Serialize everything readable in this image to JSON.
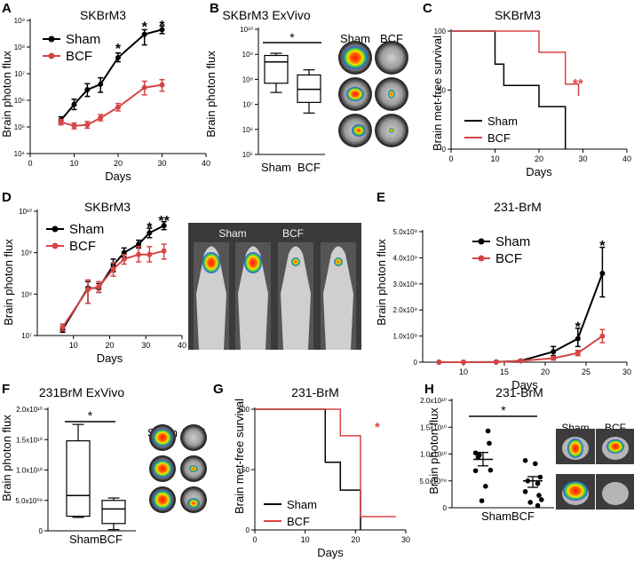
{
  "colors": {
    "sham": "#000000",
    "bcf": "#d64545"
  },
  "chart_data": [
    {
      "id": "A",
      "panel_label": "A",
      "type": "line",
      "title": "SKBrM3",
      "xlabel": "Days",
      "ylabel": "Brain photon flux",
      "xlim": [
        0,
        40
      ],
      "xticks": [
        0,
        10,
        20,
        30,
        40
      ],
      "yscale": "log",
      "ylim": [
        10000,
        1000000000
      ],
      "yticks": [
        {
          "v": 10000,
          "label": "10⁴"
        },
        {
          "v": 100000,
          "label": "10⁵"
        },
        {
          "v": 1000000,
          "label": "10⁶"
        },
        {
          "v": 10000000,
          "label": "10⁷"
        },
        {
          "v": 100000000,
          "label": "10⁸"
        },
        {
          "v": 1000000000,
          "label": "10⁹"
        }
      ],
      "legend": {
        "position": "top-left"
      },
      "series": [
        {
          "name": "Sham",
          "color": "#000000",
          "points": [
            [
              7,
              180000,
              140000,
              240000
            ],
            [
              10,
              700000,
              450000,
              1100000
            ],
            [
              13,
              2500000,
              1400000,
              4200000
            ],
            [
              16,
              4000000,
              2000000,
              7000000
            ],
            [
              20,
              40000000,
              28000000,
              60000000
            ],
            [
              26,
              300000000,
              120000000,
              450000000
            ],
            [
              30,
              450000000,
              320000000,
              620000000
            ]
          ]
        },
        {
          "name": "BCF",
          "color": "#d64545",
          "points": [
            [
              7,
              150000,
              120000,
              190000
            ],
            [
              10,
              110000,
              85000,
              140000
            ],
            [
              13,
              120000,
              90000,
              160000
            ],
            [
              16,
              220000,
              170000,
              290000
            ],
            [
              20,
              550000,
              400000,
              760000
            ],
            [
              26,
              3000000,
              1600000,
              5200000
            ],
            [
              30,
              3800000,
              2200000,
              6000000
            ]
          ]
        }
      ],
      "annotations": [
        {
          "x": 20,
          "y": 110000000,
          "text": "*"
        },
        {
          "x": 26,
          "y": 700000000,
          "text": "*"
        },
        {
          "x": 30,
          "y": 800000000,
          "text": "*"
        }
      ]
    },
    {
      "id": "B",
      "panel_label": "B",
      "type": "box",
      "title": "SKBrM3 ExVivo",
      "ylabel": "Brain photon flux",
      "yscale": "log",
      "ylim": [
        100000,
        10000000000
      ],
      "yticks": [
        {
          "v": 100000,
          "label": "10⁵"
        },
        {
          "v": 1000000,
          "label": "10⁶"
        },
        {
          "v": 10000000,
          "label": "10⁷"
        },
        {
          "v": 100000000,
          "label": "10⁸"
        },
        {
          "v": 1000000000,
          "label": "10⁹"
        },
        {
          "v": 10000000000,
          "label": "10¹⁰"
        }
      ],
      "categories": [
        "Sham",
        "BCF"
      ],
      "boxes": [
        {
          "name": "Sham",
          "min": 30000000,
          "q1": 70000000,
          "median": 500000000,
          "q3": 900000000,
          "max": 1100000000
        },
        {
          "name": "BCF",
          "min": 4500000,
          "q1": 12000000,
          "median": 40000000,
          "q3": 150000000,
          "max": 240000000
        }
      ],
      "significance": "*",
      "image_headers": [
        "Sham",
        "BCF"
      ]
    },
    {
      "id": "C",
      "panel_label": "C",
      "type": "survival",
      "title": "SKBrM3",
      "xlabel": "Days",
      "ylabel": "Brain met-free survival",
      "xlim": [
        0,
        40
      ],
      "xticks": [
        0,
        10,
        20,
        30,
        40
      ],
      "ylim": [
        0,
        100
      ],
      "yticks": [
        0,
        50,
        100
      ],
      "legend": {
        "position": "bottom-left"
      },
      "series": [
        {
          "name": "Sham",
          "color": "#000000",
          "steps": [
            [
              0,
              100
            ],
            [
              10,
              100
            ],
            [
              10,
              72
            ],
            [
              12,
              72
            ],
            [
              12,
              54
            ],
            [
              20,
              54
            ],
            [
              20,
              36
            ],
            [
              26,
              36
            ],
            [
              26,
              0
            ]
          ]
        },
        {
          "name": "BCF",
          "color": "#d64545",
          "steps": [
            [
              0,
              100
            ],
            [
              20,
              100
            ],
            [
              20,
              82
            ],
            [
              26,
              82
            ],
            [
              26,
              55
            ],
            [
              29,
              55
            ],
            [
              29,
              45
            ]
          ]
        }
      ],
      "significance": "**"
    },
    {
      "id": "D",
      "panel_label": "D",
      "type": "line",
      "title": "SKBrM3",
      "xlabel": "Days",
      "ylabel": "Brain photon flux",
      "xlim": [
        0,
        40
      ],
      "xticks": [
        10,
        20,
        30,
        40
      ],
      "yscale": "log",
      "ylim": [
        10000000,
        10000000000
      ],
      "yticks": [
        {
          "v": 10000000,
          "label": "10⁷"
        },
        {
          "v": 100000000,
          "label": "10⁸"
        },
        {
          "v": 1000000000,
          "label": "10⁹"
        },
        {
          "v": 10000000000,
          "label": "10¹⁰"
        }
      ],
      "legend": {
        "position": "top-left"
      },
      "series": [
        {
          "name": "Sham",
          "color": "#000000",
          "points": [
            [
              7,
              14000000,
              12000000,
              16000000
            ],
            [
              14,
              140000000,
              60000000,
              200000000
            ],
            [
              17,
              140000000,
              110000000,
              180000000
            ],
            [
              21,
              500000000,
              350000000,
              700000000
            ],
            [
              24,
              1000000000,
              800000000,
              1300000000
            ],
            [
              28,
              1600000000,
              1300000000,
              2000000000
            ],
            [
              31,
              3000000000,
              2300000000,
              3900000000
            ],
            [
              35,
              4500000000,
              3600000000,
              5600000000
            ]
          ]
        },
        {
          "name": "BCF",
          "color": "#d64545",
          "points": [
            [
              7,
              16000000,
              13000000,
              19000000
            ],
            [
              14,
              130000000,
              60000000,
              220000000
            ],
            [
              17,
              150000000,
              110000000,
              200000000
            ],
            [
              21,
              400000000,
              270000000,
              570000000
            ],
            [
              24,
              700000000,
              530000000,
              900000000
            ],
            [
              28,
              900000000,
              600000000,
              1400000000
            ],
            [
              31,
              900000000,
              600000000,
              1400000000
            ],
            [
              35,
              1100000000,
              700000000,
              1600000000
            ]
          ]
        }
      ],
      "annotations": [
        {
          "x": 31,
          "y": 4600000000,
          "text": "*"
        },
        {
          "x": 35,
          "y": 6700000000,
          "text": "**"
        }
      ],
      "image_headers": [
        "Sham",
        "BCF"
      ]
    },
    {
      "id": "E",
      "panel_label": "E",
      "type": "line",
      "title": "231-BrM",
      "xlabel": "Days",
      "ylabel": "Brain photon flux",
      "xlim": [
        5,
        30
      ],
      "xticks": [
        10,
        15,
        20,
        25,
        30
      ],
      "yscale": "linear",
      "ylim": [
        0,
        5000000000
      ],
      "yticks": [
        {
          "v": 0,
          "label": "0"
        },
        {
          "v": 1000000000,
          "label": "1.0x10⁹"
        },
        {
          "v": 2000000000,
          "label": "2.0x10⁹"
        },
        {
          "v": 3000000000,
          "label": "3.0x10⁹"
        },
        {
          "v": 4000000000,
          "label": "4.0x10⁹"
        },
        {
          "v": 5000000000,
          "label": "5.0x10⁹"
        }
      ],
      "legend": {
        "position": "top-center"
      },
      "series": [
        {
          "name": "Sham",
          "color": "#000000",
          "points": [
            [
              7,
              0,
              0,
              0
            ],
            [
              10,
              0,
              0,
              0
            ],
            [
              14,
              10000000,
              0,
              20000000
            ],
            [
              17,
              50000000,
              20000000,
              80000000
            ],
            [
              21,
              400000000,
              250000000,
              600000000
            ],
            [
              24,
              900000000,
              600000000,
              1300000000
            ],
            [
              27,
              3400000000,
              2500000000,
              4400000000
            ]
          ]
        },
        {
          "name": "BCF",
          "color": "#d64545",
          "points": [
            [
              7,
              0,
              0,
              0
            ],
            [
              10,
              0,
              0,
              0
            ],
            [
              14,
              0,
              0,
              10000000
            ],
            [
              17,
              50000000,
              20000000,
              80000000
            ],
            [
              21,
              150000000,
              80000000,
              220000000
            ],
            [
              24,
              350000000,
              250000000,
              450000000
            ],
            [
              27,
              1000000000,
              750000000,
              1250000000
            ]
          ]
        }
      ],
      "annotations": [
        {
          "x": 24,
          "y": 1450000000,
          "text": "*"
        },
        {
          "x": 27,
          "y": 4550000000,
          "text": "*"
        }
      ]
    },
    {
      "id": "F",
      "panel_label": "F",
      "type": "box",
      "title": "231BrM ExVivo",
      "ylabel": "Brain photon flux",
      "yscale": "linear",
      "ylim": [
        0,
        20000000000
      ],
      "yticks": [
        {
          "v": 0,
          "label": "0"
        },
        {
          "v": 5000000000,
          "label": "5.0x10⁰⁹"
        },
        {
          "v": 10000000000,
          "label": "1.0x10¹⁰"
        },
        {
          "v": 15000000000,
          "label": "1.5x10¹⁰"
        },
        {
          "v": 20000000000,
          "label": "2.0x10¹⁰"
        }
      ],
      "categories": [
        "Sham",
        "BCF"
      ],
      "category_label": "ShamBCF",
      "boxes": [
        {
          "name": "Sham",
          "min": 2200000000,
          "q1": 2400000000,
          "median": 5800000000,
          "q3": 14800000000,
          "max": 17500000000
        },
        {
          "name": "BCF",
          "min": 200000000,
          "q1": 1200000000,
          "median": 3600000000,
          "q3": 5000000000,
          "max": 5400000000
        }
      ],
      "significance": "*",
      "image_headers": [
        "Sham",
        "BCF"
      ]
    },
    {
      "id": "G",
      "panel_label": "G",
      "type": "survival",
      "title": "231-BrM",
      "xlabel": "Days",
      "ylabel": "Brain met-free survival",
      "xlim": [
        0,
        30
      ],
      "xticks": [
        0,
        10,
        20,
        30
      ],
      "ylim": [
        0,
        100
      ],
      "yticks": [
        0,
        50,
        100
      ],
      "legend": {
        "position": "bottom-left"
      },
      "series": [
        {
          "name": "Sham",
          "color": "#000000",
          "steps": [
            [
              0,
              100
            ],
            [
              14,
              100
            ],
            [
              14,
              56
            ],
            [
              17,
              56
            ],
            [
              17,
              33
            ],
            [
              21,
              33
            ],
            [
              21,
              0
            ]
          ]
        },
        {
          "name": "BCF",
          "color": "#d64545",
          "steps": [
            [
              0,
              100
            ],
            [
              17,
              100
            ],
            [
              17,
              78
            ],
            [
              21,
              78
            ],
            [
              21,
              11
            ],
            [
              28,
              11
            ]
          ]
        }
      ],
      "significance": "*"
    },
    {
      "id": "H",
      "panel_label": "H",
      "type": "scatter",
      "title": "231-BrM",
      "ylabel": "Brain photon flux",
      "yscale": "linear",
      "ylim": [
        0,
        20000000000
      ],
      "yticks": [
        {
          "v": 0,
          "label": "0"
        },
        {
          "v": 5000000000,
          "label": "5.0x10⁰⁹"
        },
        {
          "v": 10000000000,
          "label": "1.0x10¹⁰"
        },
        {
          "v": 15000000000,
          "label": "1.5x10¹⁰"
        },
        {
          "v": 20000000000,
          "label": "2.0x10¹⁰"
        }
      ],
      "categories": [
        "Sham",
        "BCF"
      ],
      "category_label": "ShamBCF",
      "groups": [
        {
          "name": "Sham",
          "mean": 9000000000,
          "sem_low": 7800000000,
          "sem_high": 10300000000,
          "points": [
            [
              -0.3,
              10200000000
            ],
            [
              0.2,
              14300000000
            ],
            [
              -0.15,
              9800000000
            ],
            [
              0.25,
              12000000000
            ],
            [
              -0.3,
              6900000000
            ],
            [
              0.3,
              7000000000
            ],
            [
              0.1,
              4000000000
            ],
            [
              -0.2,
              9400000000
            ],
            [
              -0.05,
              1300000000
            ]
          ]
        },
        {
          "name": "BCF",
          "mean": 5000000000,
          "sem_low": 3800000000,
          "sem_high": 5800000000,
          "points": [
            [
              -0.3,
              8800000000
            ],
            [
              0.1,
              8200000000
            ],
            [
              0.3,
              5700000000
            ],
            [
              -0.2,
              5000000000
            ],
            [
              0.2,
              4500000000
            ],
            [
              -0.3,
              3000000000
            ],
            [
              0.25,
              2300000000
            ],
            [
              0.35,
              1500000000
            ],
            [
              -0.1,
              1000000000
            ],
            [
              0.2,
              400000000
            ]
          ]
        }
      ],
      "significance": "*",
      "image_headers": [
        "Sham",
        "BCF"
      ]
    }
  ]
}
